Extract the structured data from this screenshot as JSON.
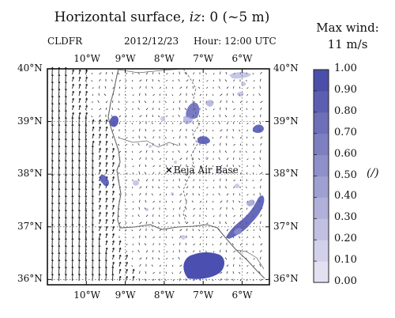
{
  "title": {
    "prefix": "Horizontal surface, ",
    "var": "iz",
    "suffix": ": 0 (~5 m)"
  },
  "meta": {
    "model": "CLDFR",
    "date": "2012/12/23",
    "hour": "Hour: 12:00 UTC"
  },
  "marker": {
    "label": "Beja Air Base",
    "lon": -7.88,
    "lat": 38.08
  },
  "axes": {
    "lon_range": [
      -11.0,
      -5.3
    ],
    "lat_range": [
      35.9,
      40.0
    ],
    "lon_ticks": [
      {
        "value": -10,
        "label": "10°W"
      },
      {
        "value": -9,
        "label": "9°W"
      },
      {
        "value": -8,
        "label": "8°W"
      },
      {
        "value": -7,
        "label": "7°W"
      },
      {
        "value": -6,
        "label": "6°W"
      }
    ],
    "lat_ticks": [
      {
        "value": 40,
        "label": "40°N"
      },
      {
        "value": 39,
        "label": "39°N"
      },
      {
        "value": 38,
        "label": "38°N"
      },
      {
        "value": 37,
        "label": "37°N"
      },
      {
        "value": 36,
        "label": "36°N"
      }
    ]
  },
  "colorbar": {
    "title_line1": "Max wind:",
    "title_line2": "11 m/s",
    "unit": "(/)",
    "color_low": "#ebe8f6",
    "color_high": "#4347a5",
    "ticks": [
      "1.00",
      "0.90",
      "0.80",
      "0.70",
      "0.60",
      "0.50",
      "0.40",
      "0.30",
      "0.20",
      "0.10",
      "0.00"
    ]
  },
  "colors": {
    "cloud": "#4a4fb0",
    "cloud_light": "#8f8fd0",
    "arrow": "#1a1a1a",
    "coast": "#666666"
  }
}
